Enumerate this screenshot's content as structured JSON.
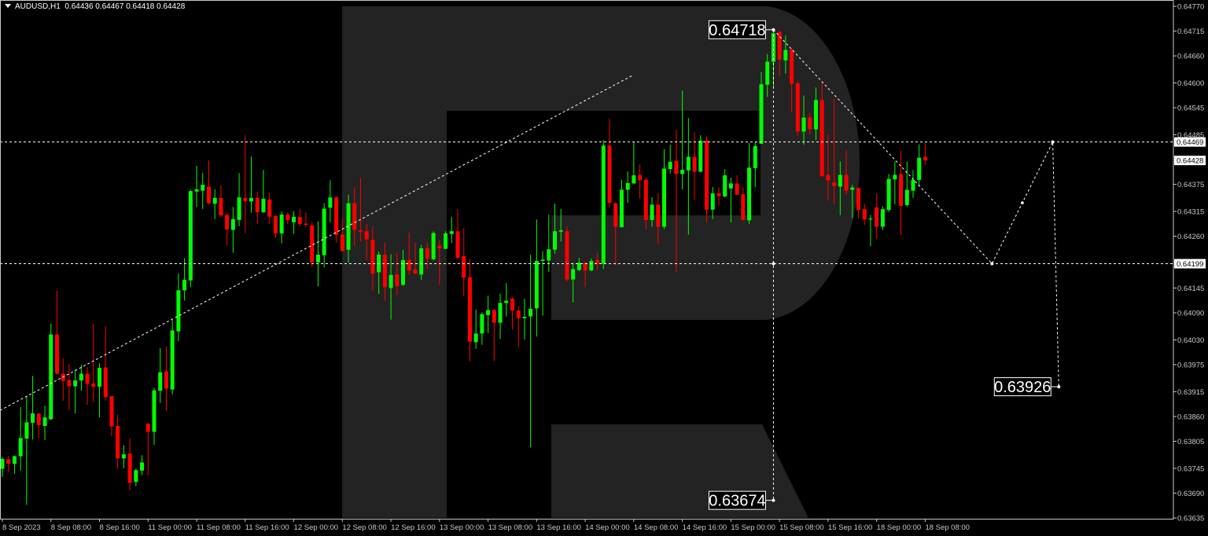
{
  "header": {
    "symbol": "AUDUSD,H1",
    "ohlc_text": "0.64436 0.64467 0.64418 0.64428"
  },
  "colors": {
    "background": "#000000",
    "bull": "#00ff00",
    "bear": "#ff0000",
    "watermark": "#232323",
    "axis": "#c8c8c8",
    "lines": "#ffffff"
  },
  "watermark_icon": "roboforex-r-logo",
  "chart_data": {
    "type": "candlestick",
    "symbol": "AUDUSD",
    "timeframe": "H1",
    "ylim": [
      0.63635,
      0.6477
    ],
    "grid": false,
    "y_ticks": [
      "0.64770",
      "0.64715",
      "0.64660",
      "0.64600",
      "0.64545",
      "0.64485",
      "0.64375",
      "0.64315",
      "0.64260",
      "0.64145",
      "0.64090",
      "0.64030",
      "0.63975",
      "0.63915",
      "0.63860",
      "0.63805",
      "0.63745",
      "0.63690",
      "0.63635"
    ],
    "price_tags": [
      {
        "value": "0.64469"
      },
      {
        "value": "0.64428"
      },
      {
        "value": "0.64199"
      }
    ],
    "x_ticks": [
      "8 Sep 2023",
      "8 Sep 08:00",
      "8 Sep 16:00",
      "11 Sep 00:00",
      "11 Sep 08:00",
      "11 Sep 16:00",
      "12 Sep 00:00",
      "12 Sep 08:00",
      "12 Sep 16:00",
      "13 Sep 00:00",
      "13 Sep 08:00",
      "13 Sep 16:00",
      "14 Sep 00:00",
      "14 Sep 08:00",
      "14 Sep 16:00",
      "15 Sep 00:00",
      "15 Sep 08:00",
      "15 Sep 16:00",
      "18 Sep 00:00",
      "18 Sep 08:00"
    ],
    "ohlc_columns": [
      "open",
      "high",
      "low",
      "close"
    ],
    "candles": [
      [
        0.63744,
        0.6377,
        0.63726,
        0.63766
      ],
      [
        0.63765,
        0.63772,
        0.63737,
        0.63755
      ],
      [
        0.63755,
        0.63773,
        0.63733,
        0.63772
      ],
      [
        0.63772,
        0.63881,
        0.6374,
        0.63812
      ],
      [
        0.63811,
        0.63905,
        0.63664,
        0.63847
      ],
      [
        0.63846,
        0.6395,
        0.63809,
        0.63867
      ],
      [
        0.63866,
        0.63869,
        0.63812,
        0.63841
      ],
      [
        0.63839,
        0.63884,
        0.63808,
        0.63858
      ],
      [
        0.63854,
        0.64066,
        0.63852,
        0.64042
      ],
      [
        0.64042,
        0.64139,
        0.63952,
        0.63955
      ],
      [
        0.63955,
        0.63989,
        0.63895,
        0.63939
      ],
      [
        0.63941,
        0.63976,
        0.63874,
        0.63927
      ],
      [
        0.63927,
        0.63964,
        0.63867,
        0.6394
      ],
      [
        0.6394,
        0.63975,
        0.63917,
        0.63955
      ],
      [
        0.63955,
        0.6397,
        0.63886,
        0.63932
      ],
      [
        0.63933,
        0.64066,
        0.63892,
        0.63926
      ],
      [
        0.63926,
        0.63978,
        0.63858,
        0.63968
      ],
      [
        0.63969,
        0.6406,
        0.63895,
        0.63903
      ],
      [
        0.63905,
        0.63906,
        0.63816,
        0.63838
      ],
      [
        0.63839,
        0.63864,
        0.63744,
        0.63767
      ],
      [
        0.63767,
        0.63796,
        0.63745,
        0.63776
      ],
      [
        0.63778,
        0.63811,
        0.63696,
        0.63713
      ],
      [
        0.63715,
        0.63744,
        0.63705,
        0.63741
      ],
      [
        0.6374,
        0.63774,
        0.6373,
        0.63758
      ],
      [
        0.63844,
        0.63846,
        0.6373,
        0.63826
      ],
      [
        0.63826,
        0.63924,
        0.63797,
        0.63918
      ],
      [
        0.63917,
        0.64012,
        0.6389,
        0.63958
      ],
      [
        0.6396,
        0.64015,
        0.63873,
        0.63922
      ],
      [
        0.6392,
        0.64074,
        0.63909,
        0.64051
      ],
      [
        0.64049,
        0.64177,
        0.64027,
        0.6414
      ],
      [
        0.6414,
        0.64211,
        0.64117,
        0.64163
      ],
      [
        0.64162,
        0.64364,
        0.64147,
        0.6436
      ],
      [
        0.64359,
        0.64416,
        0.64325,
        0.64364
      ],
      [
        0.64361,
        0.644,
        0.6432,
        0.64374
      ],
      [
        0.6437,
        0.64428,
        0.6433,
        0.64333
      ],
      [
        0.64332,
        0.64364,
        0.64298,
        0.64345
      ],
      [
        0.64345,
        0.64373,
        0.64303,
        0.64306
      ],
      [
        0.64307,
        0.64313,
        0.64239,
        0.64275
      ],
      [
        0.64274,
        0.64325,
        0.64223,
        0.64298
      ],
      [
        0.64296,
        0.644,
        0.64282,
        0.64346
      ],
      [
        0.64345,
        0.64484,
        0.64267,
        0.64338
      ],
      [
        0.64337,
        0.64437,
        0.64312,
        0.64345
      ],
      [
        0.64345,
        0.64359,
        0.64287,
        0.64313
      ],
      [
        0.64313,
        0.64407,
        0.64312,
        0.64343
      ],
      [
        0.64341,
        0.64355,
        0.64287,
        0.64303
      ],
      [
        0.64305,
        0.64306,
        0.64256,
        0.64266
      ],
      [
        0.64266,
        0.64315,
        0.64244,
        0.64308
      ],
      [
        0.64308,
        0.64313,
        0.64287,
        0.64296
      ],
      [
        0.64291,
        0.64315,
        0.64265,
        0.64303
      ],
      [
        0.64303,
        0.64321,
        0.64282,
        0.64287
      ],
      [
        0.64288,
        0.64312,
        0.6428,
        0.64285
      ],
      [
        0.64284,
        0.64291,
        0.64192,
        0.64202
      ],
      [
        0.64202,
        0.64293,
        0.64149,
        0.64219
      ],
      [
        0.64218,
        0.64333,
        0.64191,
        0.64321
      ],
      [
        0.64323,
        0.64384,
        0.64291,
        0.64346
      ],
      [
        0.64346,
        0.64349,
        0.64245,
        0.64263
      ],
      [
        0.64264,
        0.64299,
        0.64226,
        0.64227
      ],
      [
        0.6423,
        0.64352,
        0.64201,
        0.64333
      ],
      [
        0.64333,
        0.64369,
        0.64238,
        0.64274
      ],
      [
        0.64273,
        0.64389,
        0.64248,
        0.6427
      ],
      [
        0.64271,
        0.64287,
        0.64207,
        0.64253
      ],
      [
        0.64252,
        0.64282,
        0.6414,
        0.64177
      ],
      [
        0.6418,
        0.64226,
        0.64132,
        0.64219
      ],
      [
        0.64219,
        0.64246,
        0.64117,
        0.64147
      ],
      [
        0.64145,
        0.6422,
        0.64075,
        0.64174
      ],
      [
        0.64175,
        0.64223,
        0.64128,
        0.64149
      ],
      [
        0.64152,
        0.6423,
        0.6415,
        0.64207
      ],
      [
        0.64207,
        0.64268,
        0.64174,
        0.64184
      ],
      [
        0.64186,
        0.64246,
        0.64176,
        0.64177
      ],
      [
        0.64175,
        0.64241,
        0.64163,
        0.64233
      ],
      [
        0.64233,
        0.64246,
        0.64188,
        0.6421
      ],
      [
        0.64209,
        0.64271,
        0.64206,
        0.64267
      ],
      [
        0.64239,
        0.64251,
        0.64152,
        0.64233
      ],
      [
        0.64232,
        0.64271,
        0.64231,
        0.64266
      ],
      [
        0.64265,
        0.64302,
        0.64245,
        0.64271
      ],
      [
        0.64271,
        0.6432,
        0.64209,
        0.64212
      ],
      [
        0.64216,
        0.64278,
        0.64127,
        0.64168
      ],
      [
        0.64169,
        0.64209,
        0.63983,
        0.64026
      ],
      [
        0.64025,
        0.64097,
        0.6401,
        0.64044
      ],
      [
        0.64044,
        0.64091,
        0.64019,
        0.64087
      ],
      [
        0.64085,
        0.64128,
        0.64045,
        0.64096
      ],
      [
        0.64096,
        0.64099,
        0.63983,
        0.64068
      ],
      [
        0.64068,
        0.64132,
        0.64032,
        0.64112
      ],
      [
        0.64112,
        0.64156,
        0.64082,
        0.64117
      ],
      [
        0.64121,
        0.64124,
        0.64053,
        0.64095
      ],
      [
        0.64095,
        0.64104,
        0.64014,
        0.64078
      ],
      [
        0.64078,
        0.64121,
        0.64031,
        0.64081
      ],
      [
        0.64082,
        0.64219,
        0.63792,
        0.64099
      ],
      [
        0.641,
        0.64297,
        0.64037,
        0.64205
      ],
      [
        0.64205,
        0.64227,
        0.64084,
        0.64208
      ],
      [
        0.64206,
        0.64308,
        0.64181,
        0.64231
      ],
      [
        0.6423,
        0.64332,
        0.64221,
        0.64271
      ],
      [
        0.6427,
        0.6432,
        0.64248,
        0.64273
      ],
      [
        0.64271,
        0.64281,
        0.64159,
        0.64164
      ],
      [
        0.64164,
        0.64201,
        0.64113,
        0.64187
      ],
      [
        0.64185,
        0.64212,
        0.64183,
        0.64201
      ],
      [
        0.64201,
        0.64203,
        0.64147,
        0.64184
      ],
      [
        0.64184,
        0.64211,
        0.64182,
        0.64205
      ],
      [
        0.64207,
        0.64223,
        0.64185,
        0.64199
      ],
      [
        0.64199,
        0.64473,
        0.64187,
        0.64461
      ],
      [
        0.64461,
        0.6452,
        0.64324,
        0.64334
      ],
      [
        0.64333,
        0.64335,
        0.64196,
        0.64281
      ],
      [
        0.6428,
        0.64385,
        0.64279,
        0.64363
      ],
      [
        0.64363,
        0.64404,
        0.64334,
        0.64378
      ],
      [
        0.64377,
        0.64469,
        0.64376,
        0.64395
      ],
      [
        0.64396,
        0.64419,
        0.64343,
        0.64384
      ],
      [
        0.64385,
        0.6439,
        0.64276,
        0.64296
      ],
      [
        0.64296,
        0.64346,
        0.64281,
        0.6433
      ],
      [
        0.6433,
        0.64356,
        0.64242,
        0.64281
      ],
      [
        0.64281,
        0.64453,
        0.64276,
        0.6441
      ],
      [
        0.64409,
        0.64463,
        0.64399,
        0.64425
      ],
      [
        0.64427,
        0.64496,
        0.6418,
        0.64398
      ],
      [
        0.64398,
        0.64583,
        0.64364,
        0.64407
      ],
      [
        0.64406,
        0.64522,
        0.64263,
        0.64436
      ],
      [
        0.64436,
        0.64491,
        0.6434,
        0.64403
      ],
      [
        0.64403,
        0.64484,
        0.64402,
        0.64472
      ],
      [
        0.64472,
        0.64481,
        0.6429,
        0.64319
      ],
      [
        0.64319,
        0.64369,
        0.64298,
        0.64355
      ],
      [
        0.64355,
        0.64369,
        0.64328,
        0.64349
      ],
      [
        0.64348,
        0.64409,
        0.64347,
        0.64395
      ],
      [
        0.64366,
        0.6439,
        0.6429,
        0.64377
      ],
      [
        0.64377,
        0.64395,
        0.64351,
        0.64352
      ],
      [
        0.64353,
        0.64368,
        0.64295,
        0.64296
      ],
      [
        0.64295,
        0.64467,
        0.64287,
        0.64412
      ],
      [
        0.64411,
        0.64469,
        0.64369,
        0.6446
      ],
      [
        0.64465,
        0.64624,
        0.64465,
        0.64597
      ],
      [
        0.64596,
        0.64664,
        0.64569,
        0.64647
      ],
      [
        0.64647,
        0.64718,
        0.64592,
        0.6471
      ],
      [
        0.64713,
        0.64716,
        0.64615,
        0.64652
      ],
      [
        0.6465,
        0.64705,
        0.64621,
        0.64673
      ],
      [
        0.64674,
        0.64677,
        0.64535,
        0.64598
      ],
      [
        0.64599,
        0.64604,
        0.64483,
        0.64492
      ],
      [
        0.64492,
        0.64572,
        0.64463,
        0.64523
      ],
      [
        0.64523,
        0.64534,
        0.64485,
        0.64497
      ],
      [
        0.64497,
        0.6459,
        0.64473,
        0.64562
      ],
      [
        0.64562,
        0.64601,
        0.64392,
        0.64393
      ],
      [
        0.64396,
        0.64486,
        0.64339,
        0.64384
      ],
      [
        0.64379,
        0.64564,
        0.64331,
        0.64371
      ],
      [
        0.6437,
        0.64426,
        0.64307,
        0.64396
      ],
      [
        0.64396,
        0.64451,
        0.64352,
        0.64361
      ],
      [
        0.64363,
        0.64374,
        0.643,
        0.64368
      ],
      [
        0.64367,
        0.64368,
        0.643,
        0.64318
      ],
      [
        0.6432,
        0.64332,
        0.64285,
        0.64297
      ],
      [
        0.64297,
        0.64307,
        0.64238,
        0.64299
      ],
      [
        0.64324,
        0.64355,
        0.64253,
        0.64281
      ],
      [
        0.64281,
        0.64326,
        0.64273,
        0.6432
      ],
      [
        0.64318,
        0.64398,
        0.64314,
        0.64387
      ],
      [
        0.64386,
        0.64426,
        0.64331,
        0.64396
      ],
      [
        0.64398,
        0.64449,
        0.64262,
        0.64327
      ],
      [
        0.64329,
        0.64426,
        0.64325,
        0.64363
      ],
      [
        0.64361,
        0.64407,
        0.64345,
        0.64385
      ],
      [
        0.64385,
        0.64464,
        0.64371,
        0.64434
      ],
      [
        0.64436,
        0.64467,
        0.64418,
        0.64428
      ]
    ],
    "horizontal_lines": [
      0.64469,
      0.64199
    ],
    "trendline": [
      [
        "8 Sep 00:00",
        0.63877
      ],
      [
        "14 Sep 08:00",
        0.64618
      ]
    ],
    "forecast_path": [
      [
        "15 Sep 07:00",
        0.64718
      ],
      [
        "18 Sep 19:00",
        0.64199
      ],
      [
        "19 Sep 05:00",
        0.64469
      ],
      [
        "19 Sep 06:00",
        0.63926
      ]
    ],
    "vertical_projection": [
      [
        "15 Sep 07:00",
        0.64718
      ],
      [
        "15 Sep 07:00",
        0.63674
      ]
    ],
    "annotations": [
      {
        "text": "0.64718",
        "t": "15 Sep 07:00",
        "price": 0.64718,
        "side": "left"
      },
      {
        "text": "0.63674",
        "t": "15 Sep 07:00",
        "price": 0.63674,
        "side": "left"
      },
      {
        "text": "0.63926",
        "t": "19 Sep 06:00",
        "price": 0.63926,
        "side": "left"
      }
    ]
  }
}
